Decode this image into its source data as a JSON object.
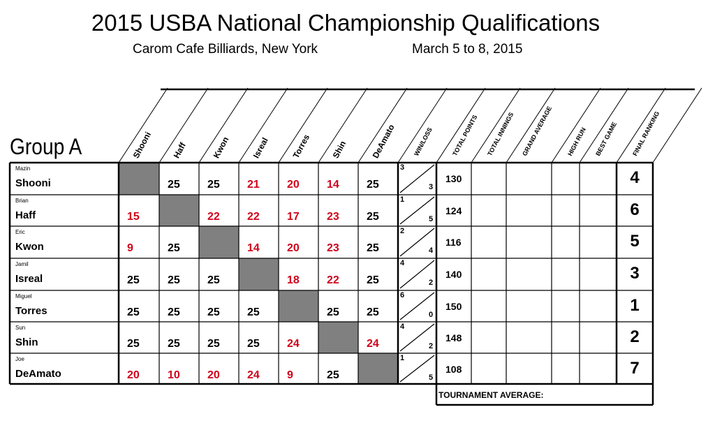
{
  "title": "2015 USBA National Championship Qualifications",
  "venue": "Carom Cafe Billiards, New York",
  "dates": "March 5 to 8, 2015",
  "group": "Group A",
  "columns": {
    "opponents": [
      "Shooni",
      "Haff",
      "Kwon",
      "Isreal",
      "Torres",
      "Shin",
      "DeAmato"
    ],
    "stats": [
      "WIN/LOSS",
      "TOTAL POINTS",
      "TOTAL INNINGS",
      "GRAND AVERAGE",
      "HIGH RUN",
      "BEST GAME",
      "FINAL RANKING"
    ]
  },
  "players": [
    {
      "first": "Mazin",
      "last": "Shooni",
      "scores": [
        null,
        "25",
        "25",
        "21",
        "20",
        "14",
        "25"
      ],
      "lost": [
        false,
        false,
        false,
        true,
        true,
        true,
        false
      ],
      "wins": "3",
      "losses": "3",
      "total_points": "130",
      "rank": "4"
    },
    {
      "first": "Brian",
      "last": "Haff",
      "scores": [
        "15",
        null,
        "22",
        "22",
        "17",
        "23",
        "25"
      ],
      "lost": [
        true,
        false,
        true,
        true,
        true,
        true,
        false
      ],
      "wins": "1",
      "losses": "5",
      "total_points": "124",
      "rank": "6"
    },
    {
      "first": "Eric",
      "last": "Kwon",
      "scores": [
        "9",
        "25",
        null,
        "14",
        "20",
        "23",
        "25"
      ],
      "lost": [
        true,
        false,
        false,
        true,
        true,
        true,
        false
      ],
      "wins": "2",
      "losses": "4",
      "total_points": "116",
      "rank": "5"
    },
    {
      "first": "Jamil",
      "last": "Isreal",
      "scores": [
        "25",
        "25",
        "25",
        null,
        "18",
        "22",
        "25"
      ],
      "lost": [
        false,
        false,
        false,
        false,
        true,
        true,
        false
      ],
      "wins": "4",
      "losses": "2",
      "total_points": "140",
      "rank": "3"
    },
    {
      "first": "Miguel",
      "last": "Torres",
      "scores": [
        "25",
        "25",
        "25",
        "25",
        null,
        "25",
        "25"
      ],
      "lost": [
        false,
        false,
        false,
        false,
        false,
        false,
        false
      ],
      "wins": "6",
      "losses": "0",
      "total_points": "150",
      "rank": "1"
    },
    {
      "first": "Sun",
      "last": "Shin",
      "scores": [
        "25",
        "25",
        "25",
        "25",
        "24",
        null,
        "24"
      ],
      "lost": [
        false,
        false,
        false,
        false,
        true,
        false,
        true
      ],
      "wins": "4",
      "losses": "2",
      "total_points": "148",
      "rank": "2"
    },
    {
      "first": "Joe",
      "last": "DeAmato",
      "scores": [
        "20",
        "10",
        "20",
        "24",
        "9",
        "25",
        null
      ],
      "lost": [
        true,
        true,
        true,
        true,
        true,
        false,
        false
      ],
      "wins": "1",
      "losses": "5",
      "total_points": "108",
      "rank": "7"
    }
  ],
  "tournament_average_label": "TOURNAMENT AVERAGE:",
  "colors": {
    "loss_score": "#d0021b",
    "self_cell": "#808080"
  }
}
